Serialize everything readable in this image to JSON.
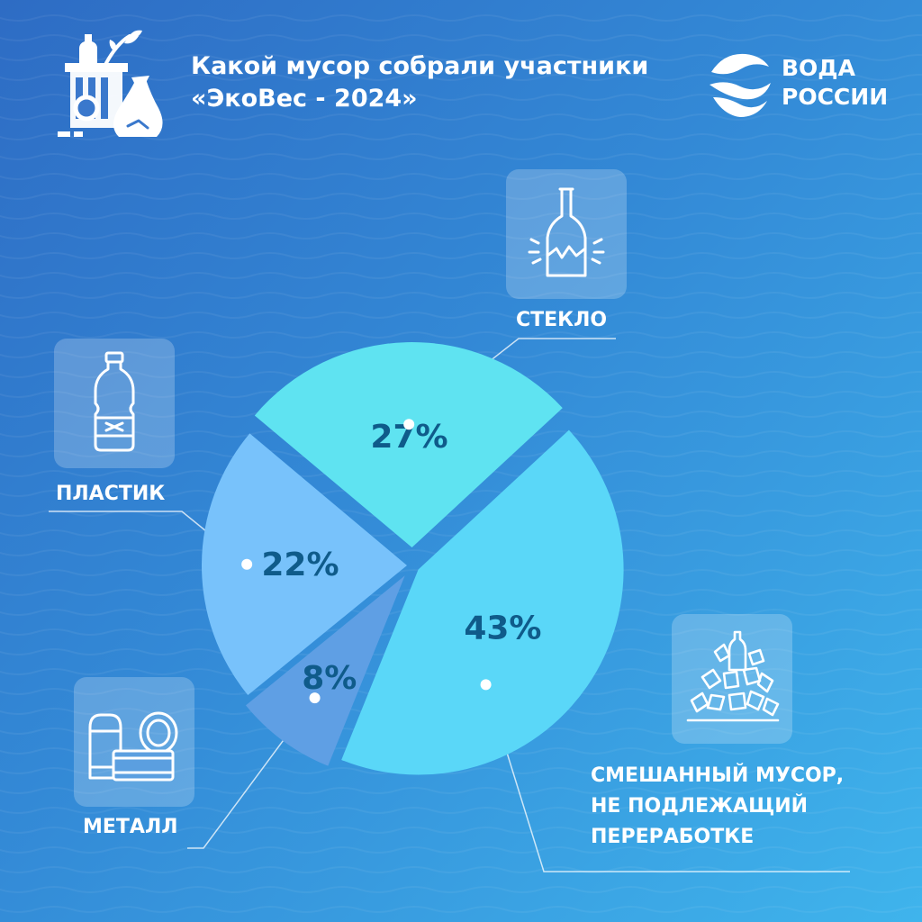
{
  "header": {
    "title_line1": "Какой мусор собрали участники",
    "title_line2": "«ЭкоВес - 2024»"
  },
  "logo": {
    "line1": "ВОДА",
    "line2": "РОССИИ"
  },
  "icons": {
    "header": "eco-waste-icon",
    "glass": "broken-bottle-icon",
    "plastic": "plastic-bottle-icon",
    "metal": "cans-icon",
    "mixed": "trash-pile-icon"
  },
  "chart_data": {
    "type": "pie",
    "categories": [
      "СТЕКЛО",
      "СМЕШАННЫЙ МУСОР, НЕ ПОДЛЕЖАЩИЙ ПЕРЕРАБОТКЕ",
      "МЕТАЛЛ",
      "ПЛАСТИК"
    ],
    "values": [
      27,
      43,
      8,
      22
    ],
    "data_labels": [
      "27%",
      "43%",
      "8%",
      "22%"
    ],
    "label_lines": {
      "glass": [
        "СТЕКЛО"
      ],
      "mixed": [
        "СМЕШАННЫЙ МУСОР,",
        "НЕ ПОДЛЕЖАЩИЙ",
        "ПЕРЕРАБОТКЕ"
      ],
      "metal": [
        "МЕТАЛЛ"
      ],
      "plastic": [
        "ПЛАСТИК"
      ]
    },
    "colors": [
      "#5fe3f1",
      "#5ad7f8",
      "#5f9fe4",
      "#78c2fb"
    ],
    "start_angle_deg": -50,
    "exploded": true
  }
}
